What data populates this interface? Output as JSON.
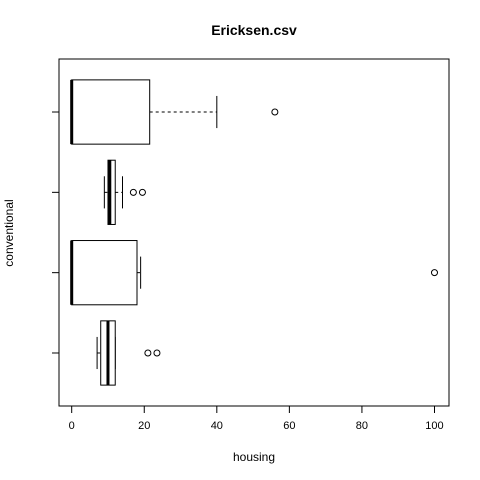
{
  "chart_data": {
    "type": "boxplot",
    "orientation": "horizontal",
    "title": "Ericksen.csv",
    "xlabel": "housing",
    "ylabel": "conventional",
    "xlim": [
      -3.5,
      104
    ],
    "x_ticks": [
      0,
      20,
      40,
      60,
      80,
      100
    ],
    "grid": false,
    "legend": "none",
    "groups": [
      {
        "position": 1,
        "whisker_low": 7,
        "q1": 8,
        "median": 10,
        "q3": 12,
        "whisker_high": 12,
        "outliers": [
          21,
          23.5
        ]
      },
      {
        "position": 2,
        "whisker_low": 0,
        "q1": 0,
        "median": 0,
        "q3": 18,
        "whisker_high": 19,
        "outliers": [
          100
        ]
      },
      {
        "position": 3,
        "whisker_low": 9,
        "q1": 10,
        "median": 10.5,
        "q3": 12,
        "whisker_high": 14,
        "outliers": [
          17,
          19.5
        ]
      },
      {
        "position": 4,
        "whisker_low": 0,
        "q1": 0,
        "median": 0,
        "q3": 21.5,
        "whisker_high": 40,
        "outliers": [
          56
        ]
      }
    ]
  }
}
